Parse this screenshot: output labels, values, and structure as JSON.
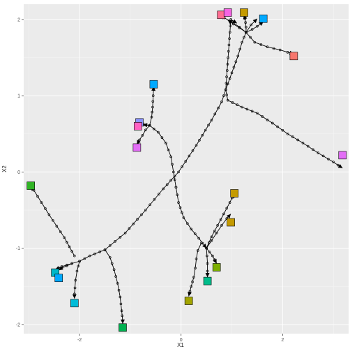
{
  "chart_data": {
    "type": "scatter",
    "title": "",
    "xlabel": "X1",
    "ylabel": "X2",
    "xlim": [
      -3.1,
      3.3
    ],
    "ylim": [
      -2.12,
      2.2
    ],
    "grid": true,
    "x_ticks": [
      -2,
      0,
      2
    ],
    "x_tick_labels": [
      "-2",
      "0",
      "2"
    ],
    "y_ticks": [
      -2,
      -1,
      0,
      1,
      2
    ],
    "y_tick_labels": [
      "-2",
      "-1",
      "0",
      "1",
      "2"
    ],
    "trajectories": [
      {
        "points": [
          [
            -1.5,
            -1.02
          ],
          [
            -1.8,
            -1.1
          ],
          [
            -2.0,
            -1.17
          ],
          [
            -2.15,
            -1.2
          ],
          [
            -2.25,
            -1.23
          ],
          [
            -2.35,
            -1.26
          ],
          [
            -2.41,
            -1.29
          ]
        ]
      },
      {
        "points": [
          [
            -2.1,
            -1.1
          ],
          [
            -2.2,
            -0.98
          ],
          [
            -2.3,
            -0.86
          ],
          [
            -2.45,
            -0.71
          ],
          [
            -2.6,
            -0.56
          ],
          [
            -2.75,
            -0.4
          ],
          [
            -2.9,
            -0.24
          ],
          [
            -2.96,
            -0.19
          ]
        ]
      },
      {
        "points": [
          [
            -2.0,
            -1.17
          ],
          [
            -2.05,
            -1.3
          ],
          [
            -2.08,
            -1.42
          ],
          [
            -2.09,
            -1.52
          ],
          [
            -2.1,
            -1.6
          ],
          [
            -2.1,
            -1.66
          ]
        ]
      },
      {
        "points": [
          [
            -1.5,
            -1.02
          ],
          [
            -1.4,
            -1.12
          ],
          [
            -1.32,
            -1.28
          ],
          [
            -1.25,
            -1.46
          ],
          [
            -1.2,
            -1.64
          ],
          [
            -1.17,
            -1.82
          ],
          [
            -1.15,
            -1.95
          ],
          [
            -1.15,
            -1.99
          ]
        ]
      },
      {
        "points": [
          [
            -2.15,
            -1.2
          ],
          [
            -2.25,
            -1.22
          ],
          [
            -2.35,
            -1.24
          ],
          [
            -2.41,
            -1.26
          ],
          [
            -2.48,
            -1.28
          ]
        ]
      },
      {
        "points": [
          [
            0.4,
            -0.93
          ],
          [
            0.33,
            -1.03
          ],
          [
            0.3,
            -1.14
          ],
          [
            0.28,
            -1.26
          ],
          [
            0.25,
            -1.38
          ],
          [
            0.2,
            -1.5
          ],
          [
            0.15,
            -1.63
          ]
        ]
      },
      {
        "points": [
          [
            0.5,
            -1.0
          ],
          [
            0.51,
            -1.1
          ],
          [
            0.52,
            -1.2
          ],
          [
            0.52,
            -1.3
          ],
          [
            0.52,
            -1.38
          ]
        ]
      },
      {
        "points": [
          [
            0.5,
            -1.0
          ],
          [
            0.56,
            -1.05
          ],
          [
            0.62,
            -1.1
          ],
          [
            0.66,
            -1.15
          ],
          [
            0.7,
            -1.2
          ]
        ]
      },
      {
        "points": [
          [
            0.5,
            -1.0
          ],
          [
            0.6,
            -0.9
          ],
          [
            0.7,
            -0.8
          ],
          [
            0.8,
            -0.7
          ],
          [
            0.9,
            -0.61
          ],
          [
            0.98,
            -0.55
          ]
        ]
      },
      {
        "points": [
          [
            0.5,
            -1.0
          ],
          [
            0.6,
            -0.85
          ],
          [
            0.72,
            -0.7
          ],
          [
            0.84,
            -0.55
          ],
          [
            0.96,
            -0.4
          ],
          [
            1.05,
            -0.28
          ]
        ]
      },
      {
        "points": [
          [
            -1.5,
            -1.02
          ],
          [
            -1.1,
            -0.8
          ],
          [
            -0.7,
            -0.5
          ],
          [
            -0.35,
            -0.22
          ],
          [
            -0.05,
            0.0
          ],
          [
            0.3,
            0.35
          ],
          [
            0.6,
            0.68
          ],
          [
            0.8,
            0.92
          ],
          [
            0.88,
            1.08
          ],
          [
            1.0,
            1.3
          ],
          [
            1.12,
            1.52
          ],
          [
            1.2,
            1.7
          ],
          [
            1.28,
            1.83
          ],
          [
            1.38,
            1.93
          ],
          [
            1.5,
            2.01
          ]
        ]
      },
      {
        "points": [
          [
            1.28,
            1.83
          ],
          [
            1.15,
            1.9
          ],
          [
            1.0,
            1.97
          ],
          [
            0.85,
            2.02
          ],
          [
            0.79,
            2.06
          ]
        ]
      },
      {
        "points": [
          [
            0.88,
            1.08
          ],
          [
            0.98,
            2.0
          ],
          [
            1.1,
            1.95
          ]
        ]
      },
      {
        "points": [
          [
            1.28,
            1.83
          ],
          [
            1.15,
            1.89
          ],
          [
            1.03,
            1.94
          ],
          [
            0.92,
            1.99
          ]
        ]
      },
      {
        "points": [
          [
            1.28,
            1.83
          ],
          [
            1.28,
            1.9
          ],
          [
            1.27,
            1.96
          ],
          [
            1.26,
            2.01
          ],
          [
            1.24,
            2.06
          ]
        ]
      },
      {
        "points": [
          [
            1.28,
            1.83
          ],
          [
            1.4,
            1.87
          ],
          [
            1.5,
            1.91
          ],
          [
            1.58,
            1.95
          ],
          [
            1.62,
            1.97
          ]
        ]
      },
      {
        "points": [
          [
            1.28,
            1.83
          ],
          [
            1.45,
            1.7
          ],
          [
            1.7,
            1.64
          ],
          [
            1.95,
            1.6
          ],
          [
            2.1,
            1.57
          ],
          [
            2.22,
            1.55
          ]
        ]
      },
      {
        "points": [
          [
            0.88,
            1.08
          ],
          [
            0.92,
            0.94
          ],
          [
            1.2,
            0.85
          ],
          [
            1.5,
            0.77
          ],
          [
            1.8,
            0.64
          ],
          [
            2.1,
            0.5
          ],
          [
            2.4,
            0.38
          ],
          [
            2.7,
            0.25
          ],
          [
            3.0,
            0.13
          ],
          [
            3.18,
            0.05
          ]
        ]
      },
      {
        "points": [
          [
            -0.1,
            -0.2
          ],
          [
            -0.15,
            0.0
          ],
          [
            -0.2,
            0.2
          ],
          [
            -0.3,
            0.38
          ],
          [
            -0.45,
            0.52
          ],
          [
            -0.62,
            0.61
          ],
          [
            -0.75,
            0.62
          ]
        ]
      },
      {
        "points": [
          [
            -0.62,
            0.61
          ],
          [
            -0.72,
            0.62
          ],
          [
            -0.82,
            0.63
          ]
        ]
      },
      {
        "points": [
          [
            -0.62,
            0.61
          ],
          [
            -0.7,
            0.55
          ],
          [
            -0.76,
            0.48
          ],
          [
            -0.82,
            0.42
          ],
          [
            -0.87,
            0.36
          ]
        ]
      },
      {
        "points": [
          [
            -0.62,
            0.61
          ],
          [
            -0.58,
            0.72
          ],
          [
            -0.56,
            0.85
          ],
          [
            -0.55,
            1.0
          ],
          [
            -0.54,
            1.12
          ]
        ]
      },
      {
        "points": [
          [
            -0.1,
            -0.2
          ],
          [
            -0.05,
            -0.4
          ],
          [
            0.05,
            -0.6
          ],
          [
            0.2,
            -0.75
          ],
          [
            0.35,
            -0.87
          ],
          [
            0.5,
            -1.0
          ]
        ]
      }
    ],
    "markers": [
      {
        "x": 0.79,
        "y": 2.06,
        "color": "#FF6C91"
      },
      {
        "x": 0.92,
        "y": 2.09,
        "color": "#F564E3"
      },
      {
        "x": 1.24,
        "y": 2.09,
        "color": "#C49A00"
      },
      {
        "x": 1.62,
        "y": 2.01,
        "color": "#00A9FF"
      },
      {
        "x": 2.22,
        "y": 1.52,
        "color": "#F8766D"
      },
      {
        "x": -0.54,
        "y": 1.15,
        "color": "#00A9FF"
      },
      {
        "x": -0.82,
        "y": 0.65,
        "color": "#8B93FF"
      },
      {
        "x": -0.85,
        "y": 0.6,
        "color": "#FF61C3"
      },
      {
        "x": -0.87,
        "y": 0.32,
        "color": "#E36EF6"
      },
      {
        "x": 3.18,
        "y": 0.22,
        "color": "#E36EF6"
      },
      {
        "x": -2.96,
        "y": -0.18,
        "color": "#31B425"
      },
      {
        "x": 1.05,
        "y": -0.28,
        "color": "#C49A00"
      },
      {
        "x": 0.98,
        "y": -0.66,
        "color": "#C49A00"
      },
      {
        "x": -2.48,
        "y": -1.32,
        "color": "#00B8C8"
      },
      {
        "x": -2.41,
        "y": -1.39,
        "color": "#00A9FF"
      },
      {
        "x": 0.7,
        "y": -1.25,
        "color": "#7CAE00"
      },
      {
        "x": 0.52,
        "y": -1.43,
        "color": "#00BC8A"
      },
      {
        "x": 0.15,
        "y": -1.69,
        "color": "#A3A500"
      },
      {
        "x": -2.1,
        "y": -1.72,
        "color": "#00BCD8"
      },
      {
        "x": -1.15,
        "y": -2.04,
        "color": "#00B050"
      }
    ]
  }
}
